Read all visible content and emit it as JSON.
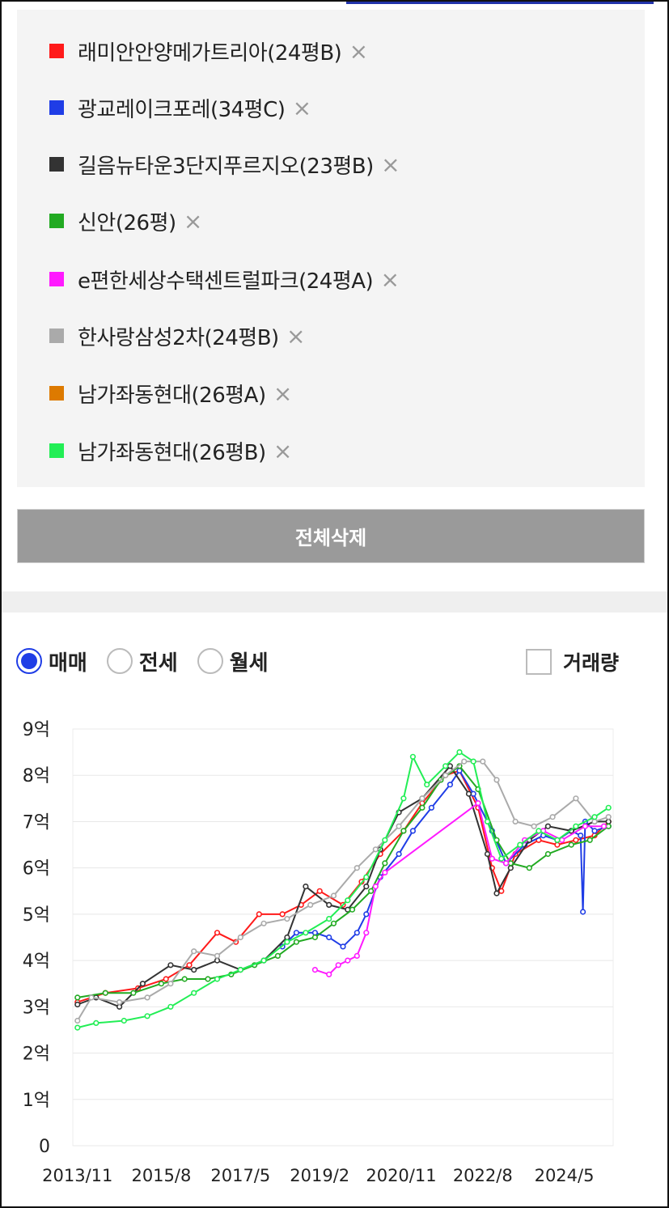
{
  "legend": [
    {
      "label": "래미안안양메가트리아(24평B)",
      "color": "#ff1a1a",
      "remove": "×"
    },
    {
      "label": "광교레이크포레(34평C)",
      "color": "#1f3de6",
      "remove": "×"
    },
    {
      "label": "길음뉴타운3단지푸르지오(23평B)",
      "color": "#333333",
      "remove": "×"
    },
    {
      "label": "신안(26평)",
      "color": "#22aa22",
      "remove": "×"
    },
    {
      "label": "e편한세상수택센트럴파크(24평A)",
      "color": "#ff1aff",
      "remove": "×"
    },
    {
      "label": "한사랑삼성2차(24평B)",
      "color": "#aaaaaa",
      "remove": "×"
    },
    {
      "label": "남가좌동현대(26평A)",
      "color": "#dd7a00",
      "remove": "×"
    },
    {
      "label": "남가좌동현대(26평B)",
      "color": "#22ee55",
      "remove": "×"
    }
  ],
  "clear_all_label": "전체삭제",
  "deal_types": [
    {
      "label": "매매",
      "selected": true
    },
    {
      "label": "전세",
      "selected": false
    },
    {
      "label": "월세",
      "selected": false
    }
  ],
  "volume_toggle": {
    "label": "거래량",
    "checked": false
  },
  "chart_data": {
    "type": "line",
    "y_tick_labels": [
      "0",
      "1억",
      "2억",
      "3억",
      "4억",
      "5억",
      "6억",
      "7억",
      "8억",
      "9억"
    ],
    "x_tick_labels": [
      "2013/11",
      "2015/8",
      "2017/5",
      "2019/2",
      "2020/11",
      "2022/8",
      "2024/5"
    ],
    "ylim": [
      0,
      9
    ],
    "xlim": [
      2013.8,
      2025.4
    ],
    "grid": true,
    "series": [
      {
        "color": "#ff1a1a",
        "points": [
          [
            2013.9,
            3.1
          ],
          [
            2014.5,
            3.3
          ],
          [
            2015.2,
            3.4
          ],
          [
            2015.8,
            3.6
          ],
          [
            2016.3,
            3.9
          ],
          [
            2016.9,
            4.6
          ],
          [
            2017.3,
            4.4
          ],
          [
            2017.8,
            5.0
          ],
          [
            2018.3,
            5.0
          ],
          [
            2018.7,
            5.2
          ],
          [
            2019.1,
            5.5
          ],
          [
            2019.6,
            5.2
          ],
          [
            2020.0,
            5.7
          ],
          [
            2020.4,
            6.3
          ],
          [
            2020.9,
            6.8
          ],
          [
            2021.3,
            7.4
          ],
          [
            2021.8,
            8.0
          ],
          [
            2022.1,
            8.1
          ],
          [
            2022.5,
            7.3
          ],
          [
            2022.8,
            6.0
          ],
          [
            2023.0,
            5.5
          ],
          [
            2023.3,
            6.3
          ],
          [
            2023.8,
            6.6
          ],
          [
            2024.2,
            6.5
          ],
          [
            2024.6,
            6.6
          ],
          [
            2025.0,
            6.7
          ],
          [
            2025.3,
            7.0
          ]
        ]
      },
      {
        "color": "#1f3de6",
        "points": [
          [
            2018.3,
            4.3
          ],
          [
            2018.6,
            4.6
          ],
          [
            2019.0,
            4.6
          ],
          [
            2019.3,
            4.5
          ],
          [
            2019.6,
            4.3
          ],
          [
            2019.9,
            4.6
          ],
          [
            2020.1,
            5.0
          ],
          [
            2020.4,
            5.8
          ],
          [
            2020.8,
            6.3
          ],
          [
            2021.1,
            6.8
          ],
          [
            2021.5,
            7.3
          ],
          [
            2021.9,
            7.8
          ],
          [
            2022.1,
            8.1
          ],
          [
            2022.4,
            7.6
          ],
          [
            2022.8,
            6.8
          ],
          [
            2023.1,
            6.1
          ],
          [
            2023.5,
            6.5
          ],
          [
            2023.9,
            6.7
          ],
          [
            2024.2,
            6.6
          ],
          [
            2024.5,
            6.8
          ],
          [
            2024.7,
            6.7
          ],
          [
            2024.75,
            5.05
          ],
          [
            2024.8,
            7.0
          ],
          [
            2025.0,
            6.8
          ],
          [
            2025.3,
            6.9
          ]
        ]
      },
      {
        "color": "#333333",
        "points": [
          [
            2013.9,
            3.05
          ],
          [
            2014.3,
            3.2
          ],
          [
            2014.8,
            3.0
          ],
          [
            2015.3,
            3.5
          ],
          [
            2015.9,
            3.9
          ],
          [
            2016.4,
            3.8
          ],
          [
            2016.9,
            4.0
          ],
          [
            2017.4,
            3.8
          ],
          [
            2017.9,
            4.0
          ],
          [
            2018.4,
            4.5
          ],
          [
            2018.8,
            5.6
          ],
          [
            2019.3,
            5.2
          ],
          [
            2019.7,
            5.1
          ],
          [
            2020.1,
            5.6
          ],
          [
            2020.4,
            6.4
          ],
          [
            2020.8,
            7.2
          ],
          [
            2021.3,
            7.5
          ],
          [
            2021.9,
            8.2
          ],
          [
            2022.3,
            7.6
          ],
          [
            2022.7,
            6.3
          ],
          [
            2022.9,
            5.45
          ],
          [
            2023.2,
            6.0
          ],
          [
            2023.6,
            6.6
          ],
          [
            2024.0,
            6.9
          ],
          [
            2024.5,
            6.8
          ],
          [
            2025.0,
            7.0
          ],
          [
            2025.3,
            7.0
          ]
        ]
      },
      {
        "color": "#22aa22",
        "points": [
          [
            2013.9,
            3.2
          ],
          [
            2014.5,
            3.3
          ],
          [
            2015.1,
            3.3
          ],
          [
            2015.7,
            3.5
          ],
          [
            2016.2,
            3.6
          ],
          [
            2016.7,
            3.6
          ],
          [
            2017.2,
            3.7
          ],
          [
            2017.7,
            3.9
          ],
          [
            2018.2,
            4.1
          ],
          [
            2018.6,
            4.4
          ],
          [
            2019.0,
            4.5
          ],
          [
            2019.4,
            4.8
          ],
          [
            2019.8,
            5.1
          ],
          [
            2020.2,
            5.5
          ],
          [
            2020.5,
            6.1
          ],
          [
            2020.9,
            6.8
          ],
          [
            2021.3,
            7.3
          ],
          [
            2021.7,
            7.9
          ],
          [
            2022.1,
            8.2
          ],
          [
            2022.5,
            7.7
          ],
          [
            2022.9,
            6.6
          ],
          [
            2023.2,
            6.1
          ],
          [
            2023.6,
            6.0
          ],
          [
            2024.0,
            6.3
          ],
          [
            2024.5,
            6.5
          ],
          [
            2024.9,
            6.6
          ],
          [
            2025.3,
            6.9
          ]
        ]
      },
      {
        "color": "#ff1aff",
        "points": [
          [
            2019.0,
            3.8
          ],
          [
            2019.3,
            3.7
          ],
          [
            2019.5,
            3.9
          ],
          [
            2019.7,
            4.0
          ],
          [
            2019.9,
            4.1
          ],
          [
            2020.1,
            4.6
          ],
          [
            2020.3,
            5.6
          ],
          [
            2020.5,
            5.9
          ],
          [
            2022.5,
            7.4
          ],
          [
            2022.8,
            6.2
          ],
          [
            2023.1,
            6.1
          ],
          [
            2023.5,
            6.6
          ],
          [
            2023.9,
            6.8
          ],
          [
            2024.3,
            6.6
          ],
          [
            2024.8,
            6.9
          ],
          [
            2025.2,
            6.9
          ]
        ]
      },
      {
        "color": "#aaaaaa",
        "points": [
          [
            2013.9,
            2.7
          ],
          [
            2014.2,
            3.2
          ],
          [
            2014.8,
            3.1
          ],
          [
            2015.4,
            3.2
          ],
          [
            2015.9,
            3.5
          ],
          [
            2016.4,
            4.2
          ],
          [
            2016.9,
            4.1
          ],
          [
            2017.4,
            4.5
          ],
          [
            2017.9,
            4.8
          ],
          [
            2018.4,
            4.9
          ],
          [
            2018.9,
            5.2
          ],
          [
            2019.4,
            5.4
          ],
          [
            2019.9,
            6.0
          ],
          [
            2020.3,
            6.4
          ],
          [
            2020.8,
            6.9
          ],
          [
            2021.3,
            7.5
          ],
          [
            2021.8,
            8.0
          ],
          [
            2022.2,
            8.3
          ],
          [
            2022.6,
            8.3
          ],
          [
            2022.9,
            7.9
          ],
          [
            2023.3,
            7.0
          ],
          [
            2023.7,
            6.9
          ],
          [
            2024.1,
            7.1
          ],
          [
            2024.6,
            7.5
          ],
          [
            2025.0,
            7.0
          ],
          [
            2025.3,
            7.1
          ]
        ]
      },
      {
        "color": "#22ee55",
        "points": [
          [
            2013.9,
            2.55
          ],
          [
            2014.3,
            2.65
          ],
          [
            2014.9,
            2.7
          ],
          [
            2015.4,
            2.8
          ],
          [
            2015.9,
            3.0
          ],
          [
            2016.4,
            3.3
          ],
          [
            2016.9,
            3.6
          ],
          [
            2017.4,
            3.8
          ],
          [
            2017.9,
            4.0
          ],
          [
            2018.4,
            4.4
          ],
          [
            2018.8,
            4.6
          ],
          [
            2019.3,
            4.9
          ],
          [
            2019.7,
            5.3
          ],
          [
            2020.1,
            5.8
          ],
          [
            2020.5,
            6.6
          ],
          [
            2020.9,
            7.5
          ],
          [
            2021.1,
            8.4
          ],
          [
            2021.4,
            7.8
          ],
          [
            2021.8,
            8.2
          ],
          [
            2022.1,
            8.5
          ],
          [
            2022.4,
            8.3
          ],
          [
            2022.7,
            7.0
          ],
          [
            2023.0,
            6.2
          ],
          [
            2023.4,
            6.5
          ],
          [
            2023.8,
            6.8
          ],
          [
            2024.2,
            6.6
          ],
          [
            2024.6,
            6.9
          ],
          [
            2025.0,
            7.1
          ],
          [
            2025.3,
            7.3
          ]
        ]
      }
    ]
  }
}
